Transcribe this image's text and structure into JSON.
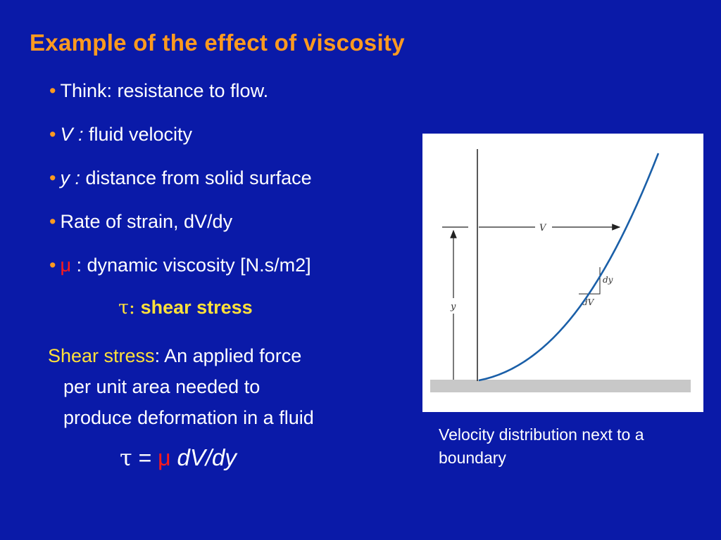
{
  "slide": {
    "title": "Example of the effect of viscosity",
    "bullet_marker": "•",
    "bullets": [
      {
        "italic": "",
        "text": "Think: resistance to flow."
      },
      {
        "italic": "V :",
        "text": " fluid velocity"
      },
      {
        "italic": "y :",
        "text": " distance from solid surface"
      },
      {
        "italic": "",
        "text": "Rate of strain, dV/dy"
      },
      {
        "symbol": "μ",
        "text": " : dynamic viscosity [N.s/m2]"
      }
    ],
    "tau_line": {
      "symbol": "τ:",
      "label": "shear stress"
    },
    "definition": {
      "term": "Shear stress",
      "line1": ": An applied force",
      "line2": "per unit area needed to",
      "line3": "produce deformation in a fluid"
    },
    "equation": {
      "tau": "τ",
      "equals": " = ",
      "mu": "μ",
      "rhs": "dV/dy"
    }
  },
  "figure": {
    "labels": {
      "V": "V",
      "y": "y",
      "dy": "dy",
      "dV": "dV"
    },
    "colors": {
      "curve": "#1a5fa8",
      "ground": "#c8c8c8",
      "lines": "#222222"
    }
  },
  "caption": "Velocity distribution next to a boundary",
  "colors": {
    "background": "#0a1aa8",
    "title": "#ff9a1f",
    "highlight": "#ffe13a",
    "mu": "#ff1a1a"
  }
}
